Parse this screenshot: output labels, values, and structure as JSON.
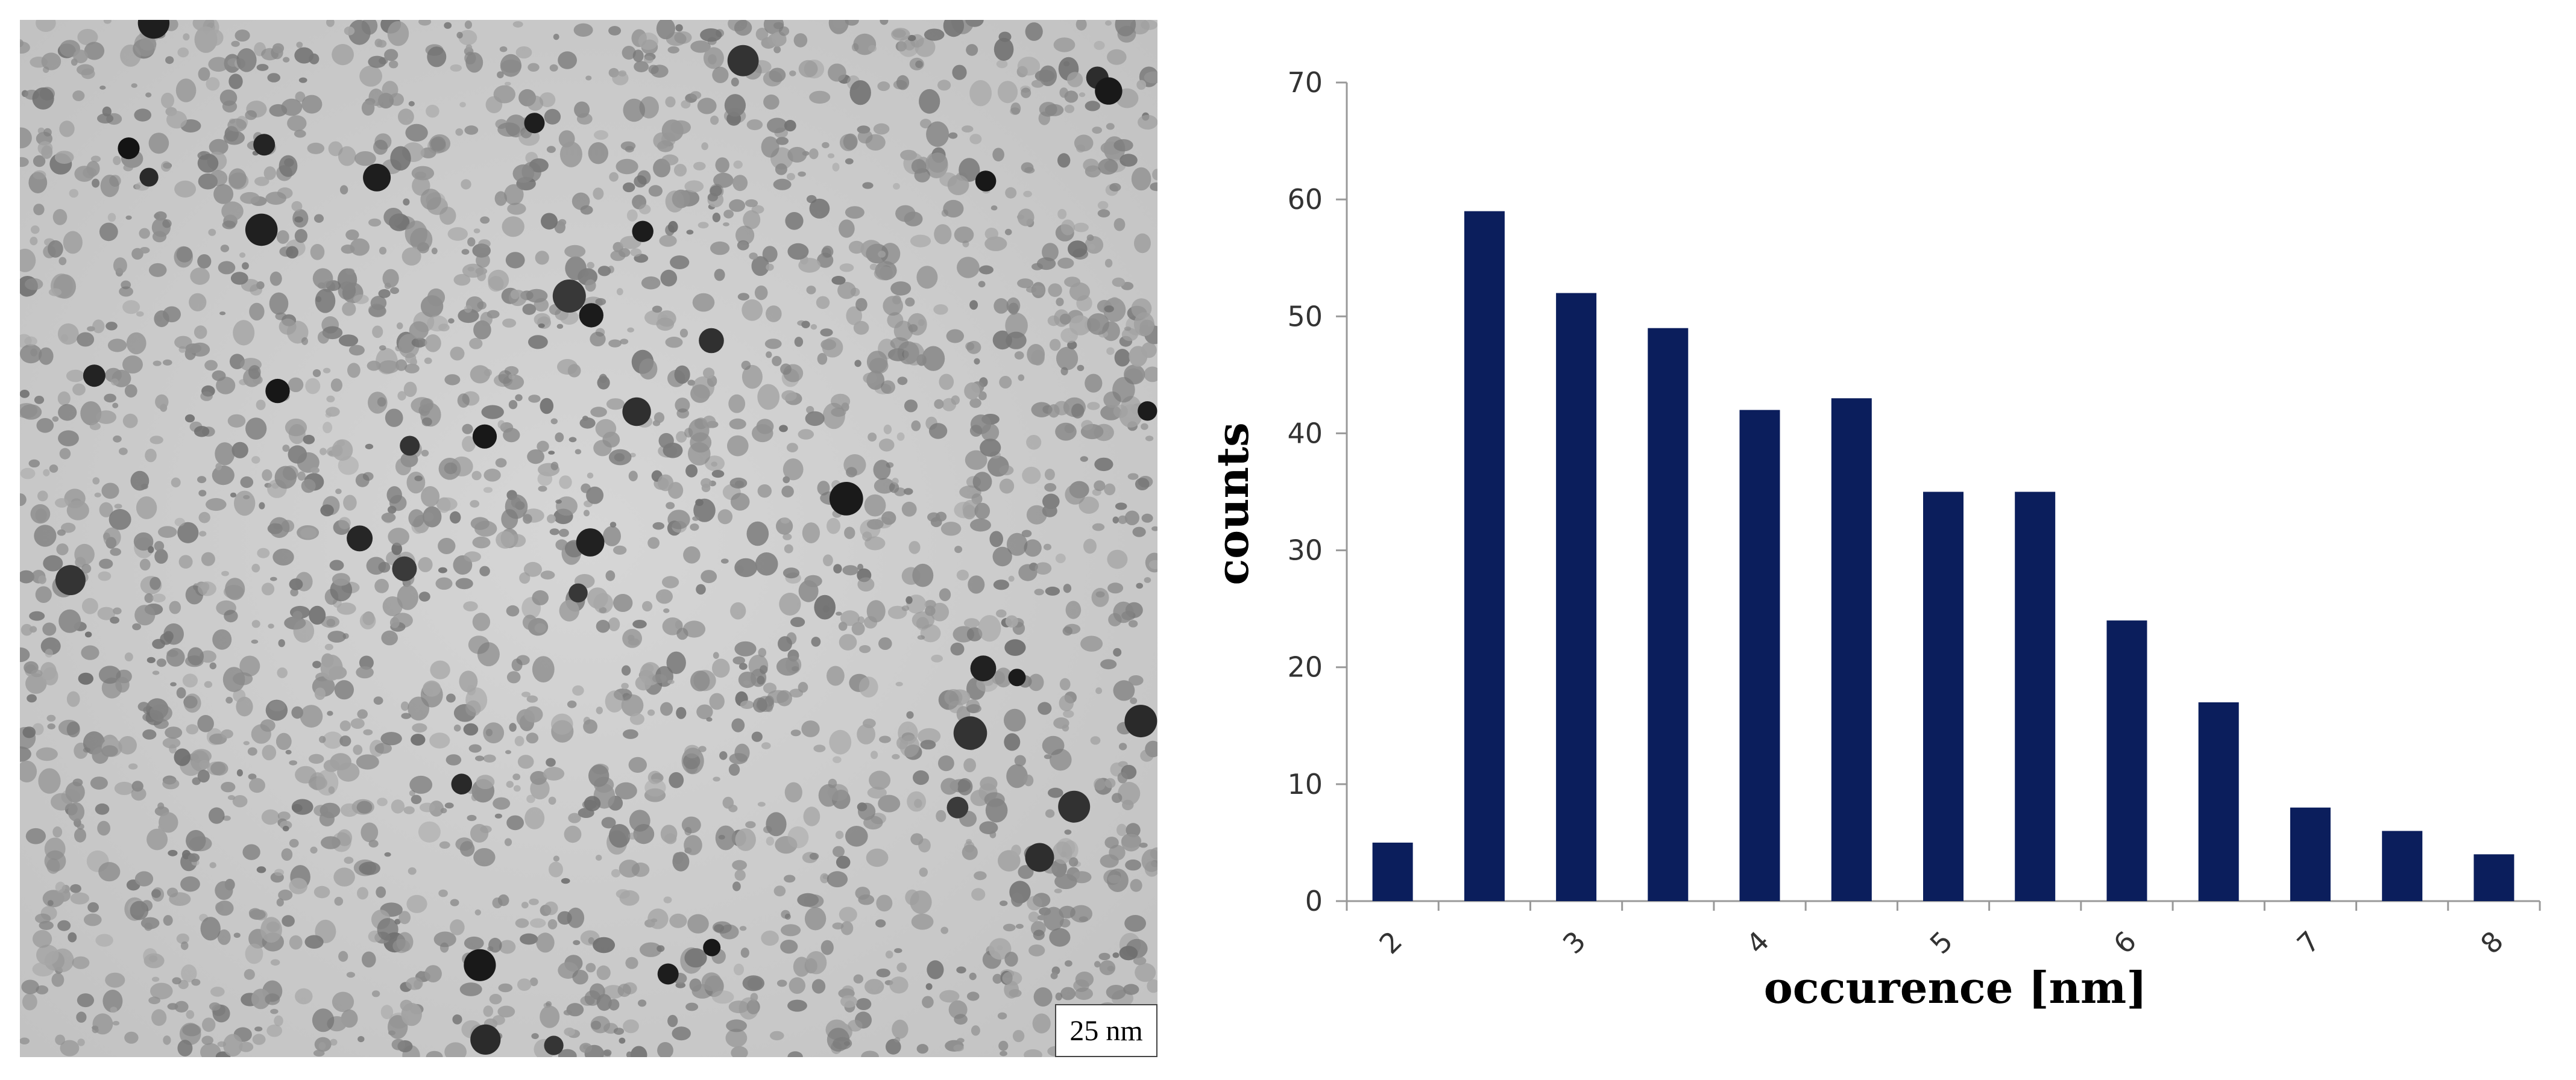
{
  "micrograph": {
    "scale_bar_label": "25 nm"
  },
  "chart_data": {
    "type": "bar",
    "categories": [
      "2",
      "2.5",
      "3",
      "3.5",
      "4",
      "4.5",
      "5",
      "5.5",
      "6",
      "6.5",
      "7",
      "7.5",
      "8"
    ],
    "tick_labels_shown": [
      "2",
      "3",
      "4",
      "5",
      "6",
      "7",
      "8"
    ],
    "values": [
      5,
      59,
      52,
      49,
      42,
      43,
      35,
      35,
      24,
      17,
      8,
      6,
      4
    ],
    "xlabel": "occurence [nm]",
    "ylabel": "counts",
    "ylim": [
      0,
      70
    ],
    "yticks": [
      0,
      10,
      20,
      30,
      40,
      50,
      60,
      70
    ],
    "grid": false,
    "bar_color": "#0b1e5c"
  }
}
